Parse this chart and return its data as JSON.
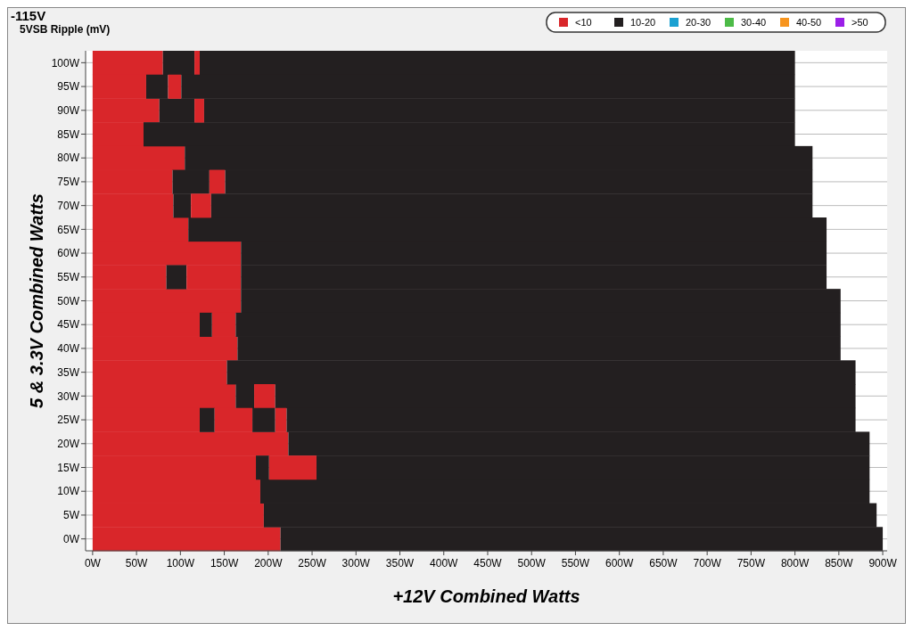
{
  "chart_data": {
    "type": "bar",
    "orientation": "horizontal",
    "stacked": true,
    "title": "-115V",
    "subtitle": "5VSB Ripple (mV)",
    "xlabel": "+12V Combined Watts",
    "ylabel": "5 & 3.3V Combined Watts",
    "categories": [
      "100W",
      "95W",
      "90W",
      "85W",
      "80W",
      "75W",
      "70W",
      "65W",
      "60W",
      "55W",
      "50W",
      "45W",
      "40W",
      "35W",
      "30W",
      "25W",
      "20W",
      "15W",
      "10W",
      "5W",
      "0W"
    ],
    "series": [
      {
        "name": "<10",
        "color": "#d9262a",
        "values": [
          80,
          61,
          76,
          58,
          105,
          91,
          92,
          109,
          169,
          84,
          169,
          122,
          165,
          153,
          163,
          122,
          223,
          186,
          191,
          195,
          214
        ]
      },
      {
        "name": "10-20",
        "color": "#231f20",
        "values": [
          36,
          25,
          40,
          742,
          715,
          42,
          20,
          727,
          667,
          23,
          683,
          14,
          687,
          716,
          21,
          17,
          662,
          15,
          694,
          698,
          686
        ]
      },
      {
        "name": "20-30",
        "color": "#1ba1d2",
        "values": [
          null,
          null,
          null,
          null,
          null,
          null,
          null,
          null,
          null,
          null,
          null,
          null,
          null,
          null,
          null,
          null,
          null,
          null,
          null,
          null,
          null
        ]
      },
      {
        "name": "30-40",
        "color": "#4cbb47",
        "values": [
          null,
          null,
          null,
          null,
          null,
          null,
          null,
          null,
          null,
          null,
          null,
          null,
          null,
          null,
          null,
          null,
          null,
          null,
          null,
          null,
          null
        ]
      },
      {
        "name": "40-50",
        "color": "#f7941d",
        "values": [
          null,
          null,
          null,
          null,
          null,
          null,
          null,
          null,
          null,
          null,
          null,
          null,
          null,
          null,
          null,
          null,
          null,
          null,
          null,
          null,
          null
        ]
      },
      {
        "name": ">50",
        "color": "#9b1fe8",
        "values": [
          null,
          null,
          null,
          null,
          null,
          null,
          null,
          null,
          null,
          null,
          null,
          null,
          null,
          null,
          null,
          null,
          null,
          null,
          null,
          null,
          null
        ]
      },
      {
        "color": "#d9262a",
        "values": [
          6,
          15,
          11,
          null,
          null,
          18,
          23,
          null,
          null,
          62,
          null,
          27,
          null,
          null,
          24,
          43,
          null,
          54,
          null,
          null,
          null
        ]
      },
      {
        "color": "#231f20",
        "values": [
          678,
          699,
          673,
          null,
          null,
          669,
          685,
          null,
          null,
          667,
          null,
          689,
          null,
          null,
          661,
          26,
          null,
          630,
          null,
          null,
          null
        ]
      },
      {
        "color": "#d9262a",
        "values": [
          null,
          null,
          null,
          null,
          null,
          null,
          null,
          null,
          null,
          null,
          null,
          null,
          null,
          null,
          null,
          13,
          null,
          null,
          null,
          null,
          null
        ]
      },
      {
        "color": "#231f20",
        "values": [
          null,
          null,
          null,
          null,
          null,
          null,
          null,
          null,
          null,
          null,
          null,
          null,
          null,
          null,
          null,
          648,
          null,
          null,
          null,
          null,
          null
        ]
      }
    ],
    "xlim": [
      -8,
      905
    ],
    "xticks": [
      {
        "value": 0,
        "label": "0W"
      },
      {
        "value": 50,
        "label": "50W"
      },
      {
        "value": 100,
        "label": "100W"
      },
      {
        "value": 150,
        "label": "150W"
      },
      {
        "value": 200,
        "label": "200W"
      },
      {
        "value": 250,
        "label": "250W"
      },
      {
        "value": 300,
        "label": "300W"
      },
      {
        "value": 350,
        "label": "350W"
      },
      {
        "value": 400,
        "label": "400W"
      },
      {
        "value": 450,
        "label": "450W"
      },
      {
        "value": 500,
        "label": "500W"
      },
      {
        "value": 550,
        "label": "550W"
      },
      {
        "value": 600,
        "label": "600W"
      },
      {
        "value": 650,
        "label": "650W"
      },
      {
        "value": 700,
        "label": "700W"
      },
      {
        "value": 750,
        "label": "750W"
      },
      {
        "value": 800,
        "label": "800W"
      },
      {
        "value": 850,
        "label": "850W"
      },
      {
        "value": 900,
        "label": "900W"
      }
    ],
    "grid": "y",
    "legend": "top right"
  }
}
